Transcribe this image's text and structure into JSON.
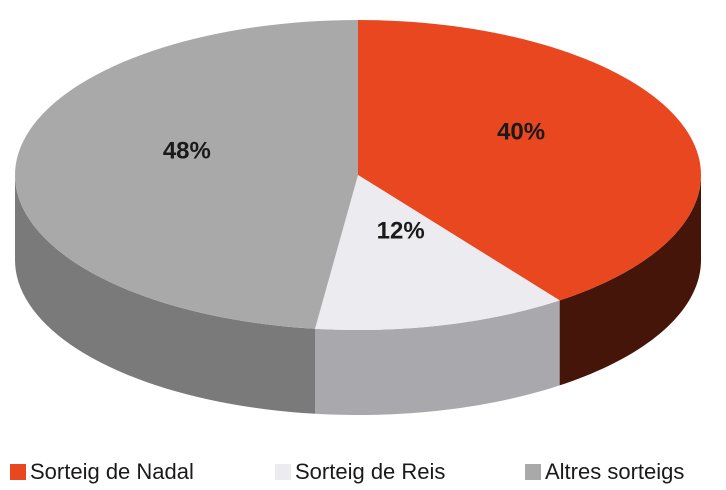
{
  "chart_data": {
    "type": "pie3d",
    "categories": [
      "Sorteig de Nadal",
      "Sorteig de Reis",
      "Altres sorteigs"
    ],
    "values": [
      40,
      12,
      48
    ],
    "value_labels": [
      "40%",
      "12%",
      "48%"
    ],
    "colors": [
      "#e8471f",
      "#ebebf0",
      "#a9a9a9"
    ]
  }
}
